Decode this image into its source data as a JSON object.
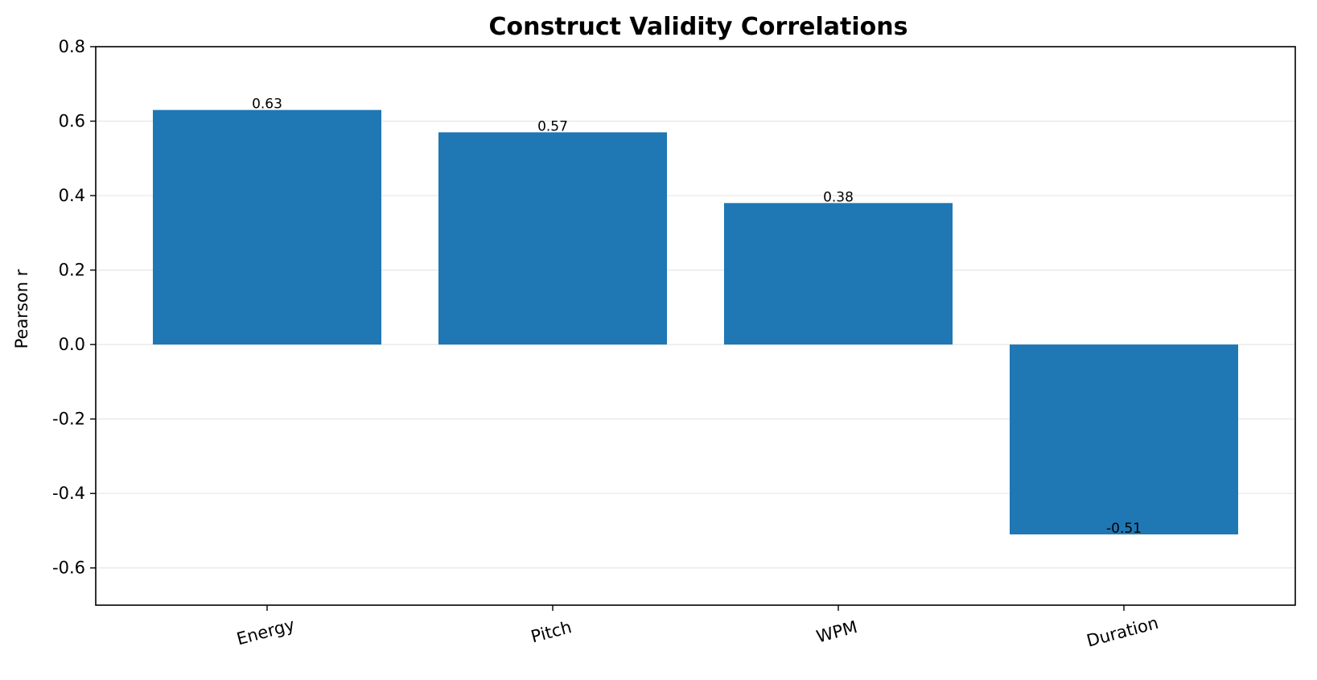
{
  "chart_data": {
    "type": "bar",
    "title": "Construct Validity Correlations",
    "xlabel": "",
    "ylabel": "Pearson r",
    "categories": [
      "Energy",
      "Pitch",
      "WPM",
      "Duration"
    ],
    "values": [
      0.63,
      0.57,
      0.38,
      -0.51
    ],
    "value_labels": [
      "0.63",
      "0.57",
      "0.38",
      "-0.51"
    ],
    "ylim": [
      -0.7,
      0.8
    ],
    "yticks": [
      -0.6,
      -0.4,
      -0.2,
      0.0,
      0.2,
      0.4,
      0.6,
      0.8
    ],
    "ytick_labels": [
      "-0.6",
      "-0.4",
      "-0.2",
      "0.0",
      "0.2",
      "0.4",
      "0.6",
      "0.8"
    ],
    "grid": "y",
    "bar_color": "#1f77b4"
  }
}
